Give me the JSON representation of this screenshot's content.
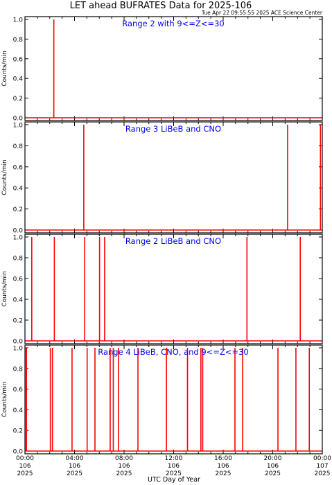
{
  "header": {
    "title": "LET ahead BUFRATES Data for 2025-106",
    "timestamp": "Tue Apr 22 09:55:55 2025 ACE Science Center"
  },
  "colors": {
    "series": "#ff0000",
    "panel_label": "#0000ff",
    "axes": "#000000",
    "background": "#ffffff"
  },
  "chart_data": [
    {
      "type": "line",
      "title": "Range 2 with 9<=Z<=30",
      "ylabel": "Counts/min",
      "ylim": [
        0,
        1
      ],
      "xlim": [
        0,
        24
      ],
      "yticks": [
        "0.0",
        "0.2",
        "0.4",
        "0.6",
        "0.8",
        "1.0"
      ],
      "spikes_hours": [
        2.33
      ]
    },
    {
      "type": "line",
      "title": "Range 3 LiBeB and CNO",
      "ylabel": "Counts/min",
      "ylim": [
        0,
        1
      ],
      "xlim": [
        0,
        24
      ],
      "yticks": [
        "0.0",
        "0.2",
        "0.4",
        "0.6",
        "0.8",
        "1.0"
      ],
      "spikes_hours": [
        4.75,
        21.2,
        23.85
      ]
    },
    {
      "type": "line",
      "title": "Range 2 LiBeB and CNO",
      "ylabel": "Counts/min",
      "ylim": [
        0,
        1
      ],
      "xlim": [
        0,
        24
      ],
      "yticks": [
        "0.0",
        "0.2",
        "0.4",
        "0.6",
        "0.8",
        "1.0"
      ],
      "spikes_hours": [
        0.55,
        2.37,
        4.82,
        6.02,
        6.43,
        17.92,
        22.22
      ]
    },
    {
      "type": "line",
      "title": "Range 4 LiBeB, CNO, and 9<=Z<=30",
      "ylabel": "Counts/min",
      "xlabel": "UTC Day of Year",
      "ylim": [
        0,
        1
      ],
      "xlim": [
        0,
        24
      ],
      "yticks": [
        "0.0",
        "0.2",
        "0.4",
        "0.6",
        "0.8",
        "1.0"
      ],
      "xticks": [
        {
          "hour": 0,
          "label": [
            "00:00",
            "106",
            "2025"
          ]
        },
        {
          "hour": 4,
          "label": [
            "04:00",
            "106",
            "2025"
          ]
        },
        {
          "hour": 8,
          "label": [
            "08:00",
            "106",
            "2025"
          ]
        },
        {
          "hour": 12,
          "label": [
            "12:00",
            "106",
            "2025"
          ]
        },
        {
          "hour": 16,
          "label": [
            "16:00",
            "106",
            "2025"
          ]
        },
        {
          "hour": 20,
          "label": [
            "20:00",
            "106",
            "2025"
          ]
        },
        {
          "hour": 24,
          "label": [
            "00:00",
            "107",
            "2025"
          ]
        }
      ],
      "spikes_hours": [
        0.05,
        0.12,
        2.05,
        2.22,
        3.8,
        5.02,
        5.65,
        6.88,
        7.13,
        7.55,
        9.12,
        11.42,
        13.12,
        14.2,
        14.35,
        16.95,
        17.57,
        20.42,
        21.87,
        22.95
      ]
    }
  ]
}
